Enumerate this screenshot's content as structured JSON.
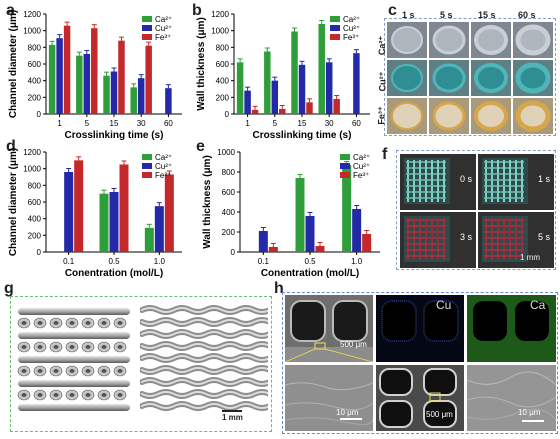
{
  "panels": {
    "a": "a",
    "b": "b",
    "c": "c",
    "d": "d",
    "e": "e",
    "f": "f",
    "g": "g",
    "h": "h"
  },
  "colors": {
    "Ca": "#2e9e3a",
    "Cu": "#2329a8",
    "Fe": "#c4282a"
  },
  "chart_data": [
    {
      "id": "a",
      "type": "bar",
      "xlabel": "Crosslinking time (s)",
      "ylabel": "Channel diameter (μm)",
      "ylim": [
        0,
        1200
      ],
      "yticks": [
        0,
        200,
        400,
        600,
        800,
        1000,
        1200
      ],
      "categories": [
        "1",
        "5",
        "15",
        "30",
        "60"
      ],
      "legend": [
        "Ca²⁺",
        "Cu²⁺",
        "Fe³⁺"
      ],
      "series": [
        {
          "name": "Ca²⁺",
          "values": [
            830,
            700,
            460,
            320,
            null
          ]
        },
        {
          "name": "Cu²⁺",
          "values": [
            910,
            720,
            510,
            430,
            310
          ]
        },
        {
          "name": "Fe³⁺",
          "values": [
            1060,
            1030,
            880,
            820,
            null
          ]
        }
      ]
    },
    {
      "id": "b",
      "type": "bar",
      "xlabel": "Crosslinking time (s)",
      "ylabel": "Wall thickness (μm)",
      "ylim": [
        0,
        1200
      ],
      "yticks": [
        0,
        200,
        400,
        600,
        800,
        1000,
        1200
      ],
      "categories": [
        "1",
        "5",
        "15",
        "30",
        "60"
      ],
      "legend": [
        "Ca²⁺",
        "Cu²⁺",
        "Fe³⁺"
      ],
      "series": [
        {
          "name": "Ca²⁺",
          "values": [
            620,
            750,
            990,
            1080,
            null
          ]
        },
        {
          "name": "Cu²⁺",
          "values": [
            280,
            400,
            590,
            620,
            730
          ]
        },
        {
          "name": "Fe³⁺",
          "values": [
            50,
            60,
            140,
            180,
            null
          ]
        }
      ]
    },
    {
      "id": "d",
      "type": "bar",
      "xlabel": "Conentration (mol/L)",
      "ylabel": "Channel diameter (μm)",
      "ylim": [
        0,
        1200
      ],
      "yticks": [
        0,
        200,
        400,
        600,
        800,
        1000,
        1200
      ],
      "categories": [
        "0.1",
        "0.5",
        "1.0"
      ],
      "legend": [
        "Ca²⁺",
        "Cu²⁺",
        "Fe³⁺"
      ],
      "series": [
        {
          "name": "Ca²⁺",
          "values": [
            null,
            700,
            290
          ]
        },
        {
          "name": "Cu²⁺",
          "values": [
            960,
            720,
            550
          ]
        },
        {
          "name": "Fe³⁺",
          "values": [
            1100,
            1050,
            930
          ]
        }
      ]
    },
    {
      "id": "e",
      "type": "bar",
      "xlabel": "Conentration (mol/L)",
      "ylabel": "Wall thickness (μm)",
      "ylim": [
        0,
        1000
      ],
      "yticks": [
        0,
        200,
        400,
        600,
        800,
        1000
      ],
      "categories": [
        "0.1",
        "0.5",
        "1.0"
      ],
      "legend": [
        "Ca²⁺",
        "Cu²⁺",
        "Fe³⁺"
      ],
      "series": [
        {
          "name": "Ca²⁺",
          "values": [
            null,
            740,
            870
          ]
        },
        {
          "name": "Cu²⁺",
          "values": [
            210,
            360,
            430
          ]
        },
        {
          "name": "Fe³⁺",
          "values": [
            50,
            60,
            180
          ]
        }
      ]
    }
  ],
  "panel_c": {
    "columns": [
      "1 s",
      "5 s",
      "15 s",
      "60 s"
    ],
    "rows": [
      "Ca²⁺",
      "Cu²⁺",
      "Fe³⁺"
    ]
  },
  "panel_f": {
    "labels": [
      "0 s",
      "1 s",
      "3 s",
      "5 s"
    ],
    "scale": "1 mm"
  },
  "panel_g": {
    "scale": "1 mm"
  },
  "panel_h": {
    "element_labels": [
      "Cu",
      "Ca"
    ],
    "scale_labels": [
      "500 μm",
      "10 μm",
      "500 μm",
      "10 μm"
    ]
  }
}
